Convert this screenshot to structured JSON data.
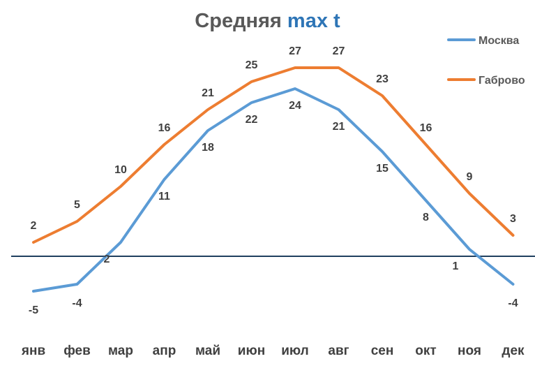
{
  "chart_data": {
    "type": "line",
    "title_main": "Средняя",
    "title_accent": "max t",
    "categories": [
      "янв",
      "фев",
      "мар",
      "апр",
      "май",
      "июн",
      "июл",
      "авг",
      "сен",
      "окт",
      "ноя",
      "дек"
    ],
    "series": [
      {
        "name": "Москва",
        "values": [
          -5,
          -4,
          2,
          11,
          18,
          22,
          24,
          21,
          15,
          8,
          1,
          -4
        ],
        "color": "#5B9BD5"
      },
      {
        "name": "Габрово",
        "values": [
          2,
          5,
          10,
          16,
          21,
          25,
          27,
          27,
          23,
          16,
          9,
          3
        ],
        "color": "#ED7D31"
      }
    ],
    "ylim": [
      -8,
      30
    ],
    "zero_line_color": "#1F3F5F",
    "grid": false,
    "legend_position": "top-right"
  }
}
